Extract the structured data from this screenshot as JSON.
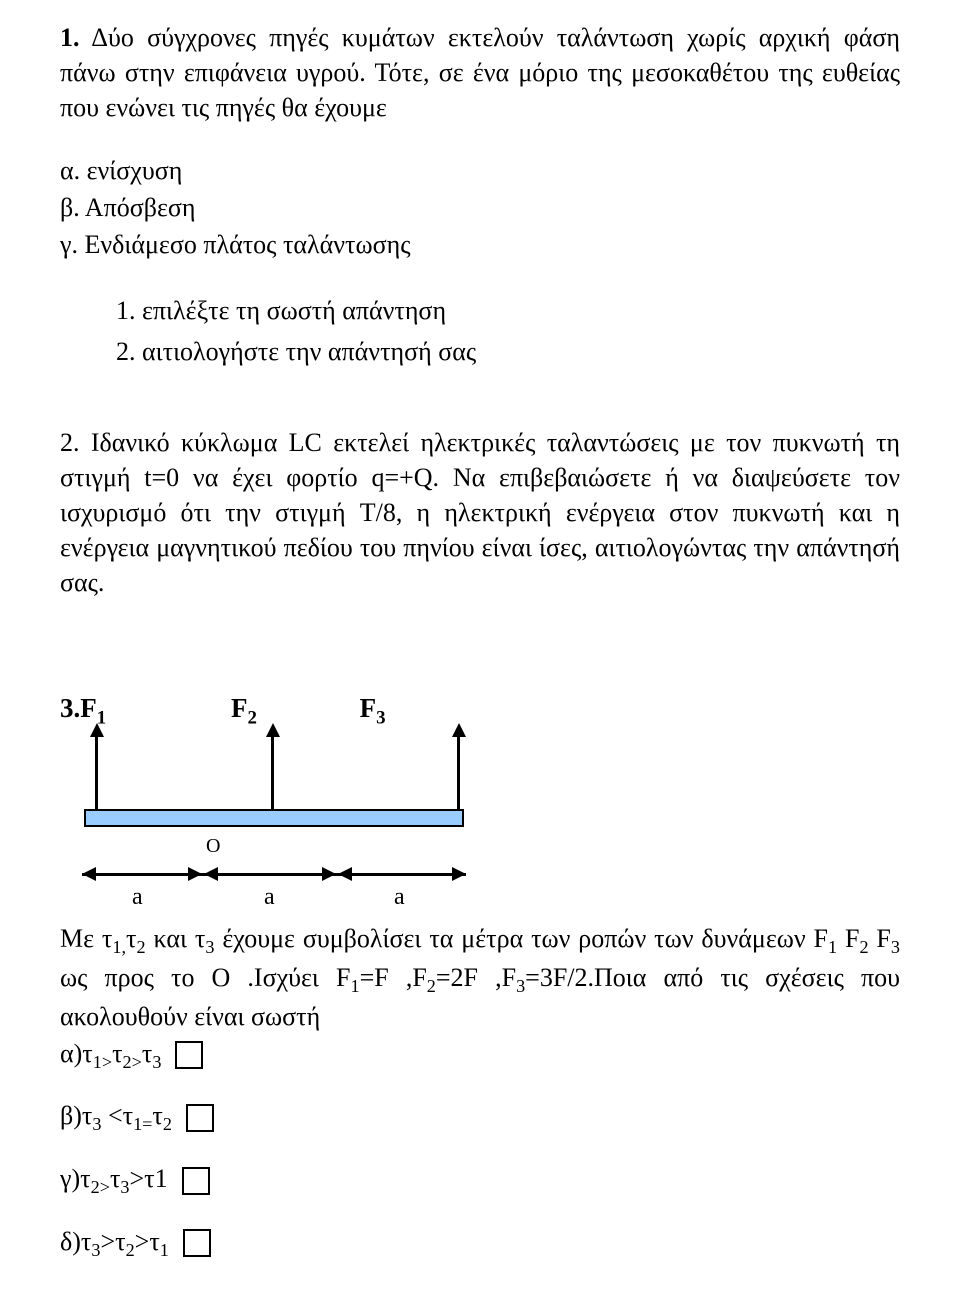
{
  "q1": {
    "num": "1.",
    "stem": "Δύο σύγχρονες πηγές κυμάτων εκτελούν ταλάντωση χωρίς αρχική φάση πάνω στην επιφάνεια υγρού. Τότε, σε ένα μόριο της μεσοκαθέτου της ευθείας που ενώνει τις πηγές θα έχουμε",
    "opts": {
      "a": "α. ενίσχυση",
      "b": "β. Απόσβεση",
      "c": "γ. Ενδιάμεσο πλάτος ταλάντωσης"
    },
    "subs": {
      "s1": "1. επιλέξτε τη σωστή απάντηση",
      "s2": "2. αιτιολογήστε την απάντησή σας"
    }
  },
  "q2": {
    "text": "2. Ιδανικό κύκλωμα LC εκτελεί ηλεκτρικές ταλαντώσεις με τον πυκνωτή τη στιγμή t=0 να έχει φορτίο q=+Q. Να επιβεβαιώσετε ή να διαψεύσετε τον ισχυρισμό ότι την στιγμή T/8, η ηλεκτρική ενέργεια στον πυκνωτή και η ενέργεια μαγνητικού πεδίου του πηνίου είναι ίσες, αιτιολογώντας την απάντησή σας."
  },
  "q3": {
    "header": {
      "n": "3.",
      "f1": "F",
      "f2": "F",
      "f3": "F"
    },
    "body_html": "Με τ<sub>1,</sub>τ<sub>2</sub> και τ<sub>3</sub> έχουμε συμβολίσει τα μέτρα των ροπών των δυνάμεων F<sub>1</sub> F<sub>2</sub> F<sub>3</sub> ως προς το Ο .Ισχύει F<sub>1</sub>=F ,F<sub>2</sub>=2F ,F<sub>3</sub>=3F/2.Ποια από τις σχέσεις που ακολουθούν είναι σωστή",
    "choices": {
      "a": "α)τ<sub>1&gt;</sub>τ<sub>2&gt;</sub>τ<sub>3</sub>",
      "b": "β)τ<sub>3</sub> &lt;τ<sub>1=</sub>τ<sub>2</sub>",
      "c": "γ)τ<sub>2&gt;</sub>τ<sub>3</sub>&gt;τ1",
      "d": "δ)τ<sub>3</sub>&gt;τ<sub>2</sub>&gt;τ<sub>1</sub>"
    }
  },
  "diagram": {
    "a": "a",
    "a2": "a",
    "a3": "a",
    "O": "O"
  }
}
